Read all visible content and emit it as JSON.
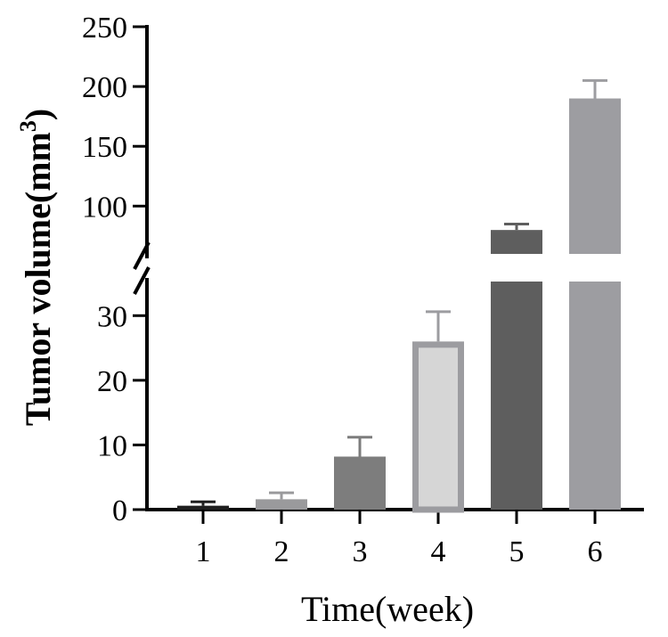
{
  "chart_data": {
    "type": "bar",
    "xlabel": "Time(week)",
    "ylabel_main": "Tumor volume(mm",
    "ylabel_sup": "3",
    "ylabel_close": ")",
    "categories": [
      "1",
      "2",
      "3",
      "4",
      "5",
      "6"
    ],
    "values": [
      0.6,
      1.6,
      8.2,
      26,
      80,
      190
    ],
    "errors": [
      0.6,
      1.0,
      3.0,
      4.6,
      5,
      15
    ],
    "bar_fills": [
      "#1e1e1e",
      "#9a9a9c",
      "#7d7d7d",
      "#d6d6d6",
      "#5e5e5e",
      "#9d9da1"
    ],
    "bar_strokes": [
      "none",
      "none",
      "none",
      "#9c9ca0",
      "none",
      "none"
    ],
    "error_colors": [
      "#1e1e1e",
      "#9a9a9c",
      "#7d7d7d",
      "#9c9ca0",
      "#5e5e5e",
      "#9d9da1"
    ],
    "y_axis_break": true,
    "lower_ylim": [
      0,
      35
    ],
    "upper_ylim": [
      60,
      250
    ],
    "lower_ticks": [
      "0",
      "10",
      "20",
      "30"
    ],
    "upper_ticks": [
      "100",
      "150",
      "200",
      "250"
    ],
    "grid": false,
    "legend": "none"
  }
}
